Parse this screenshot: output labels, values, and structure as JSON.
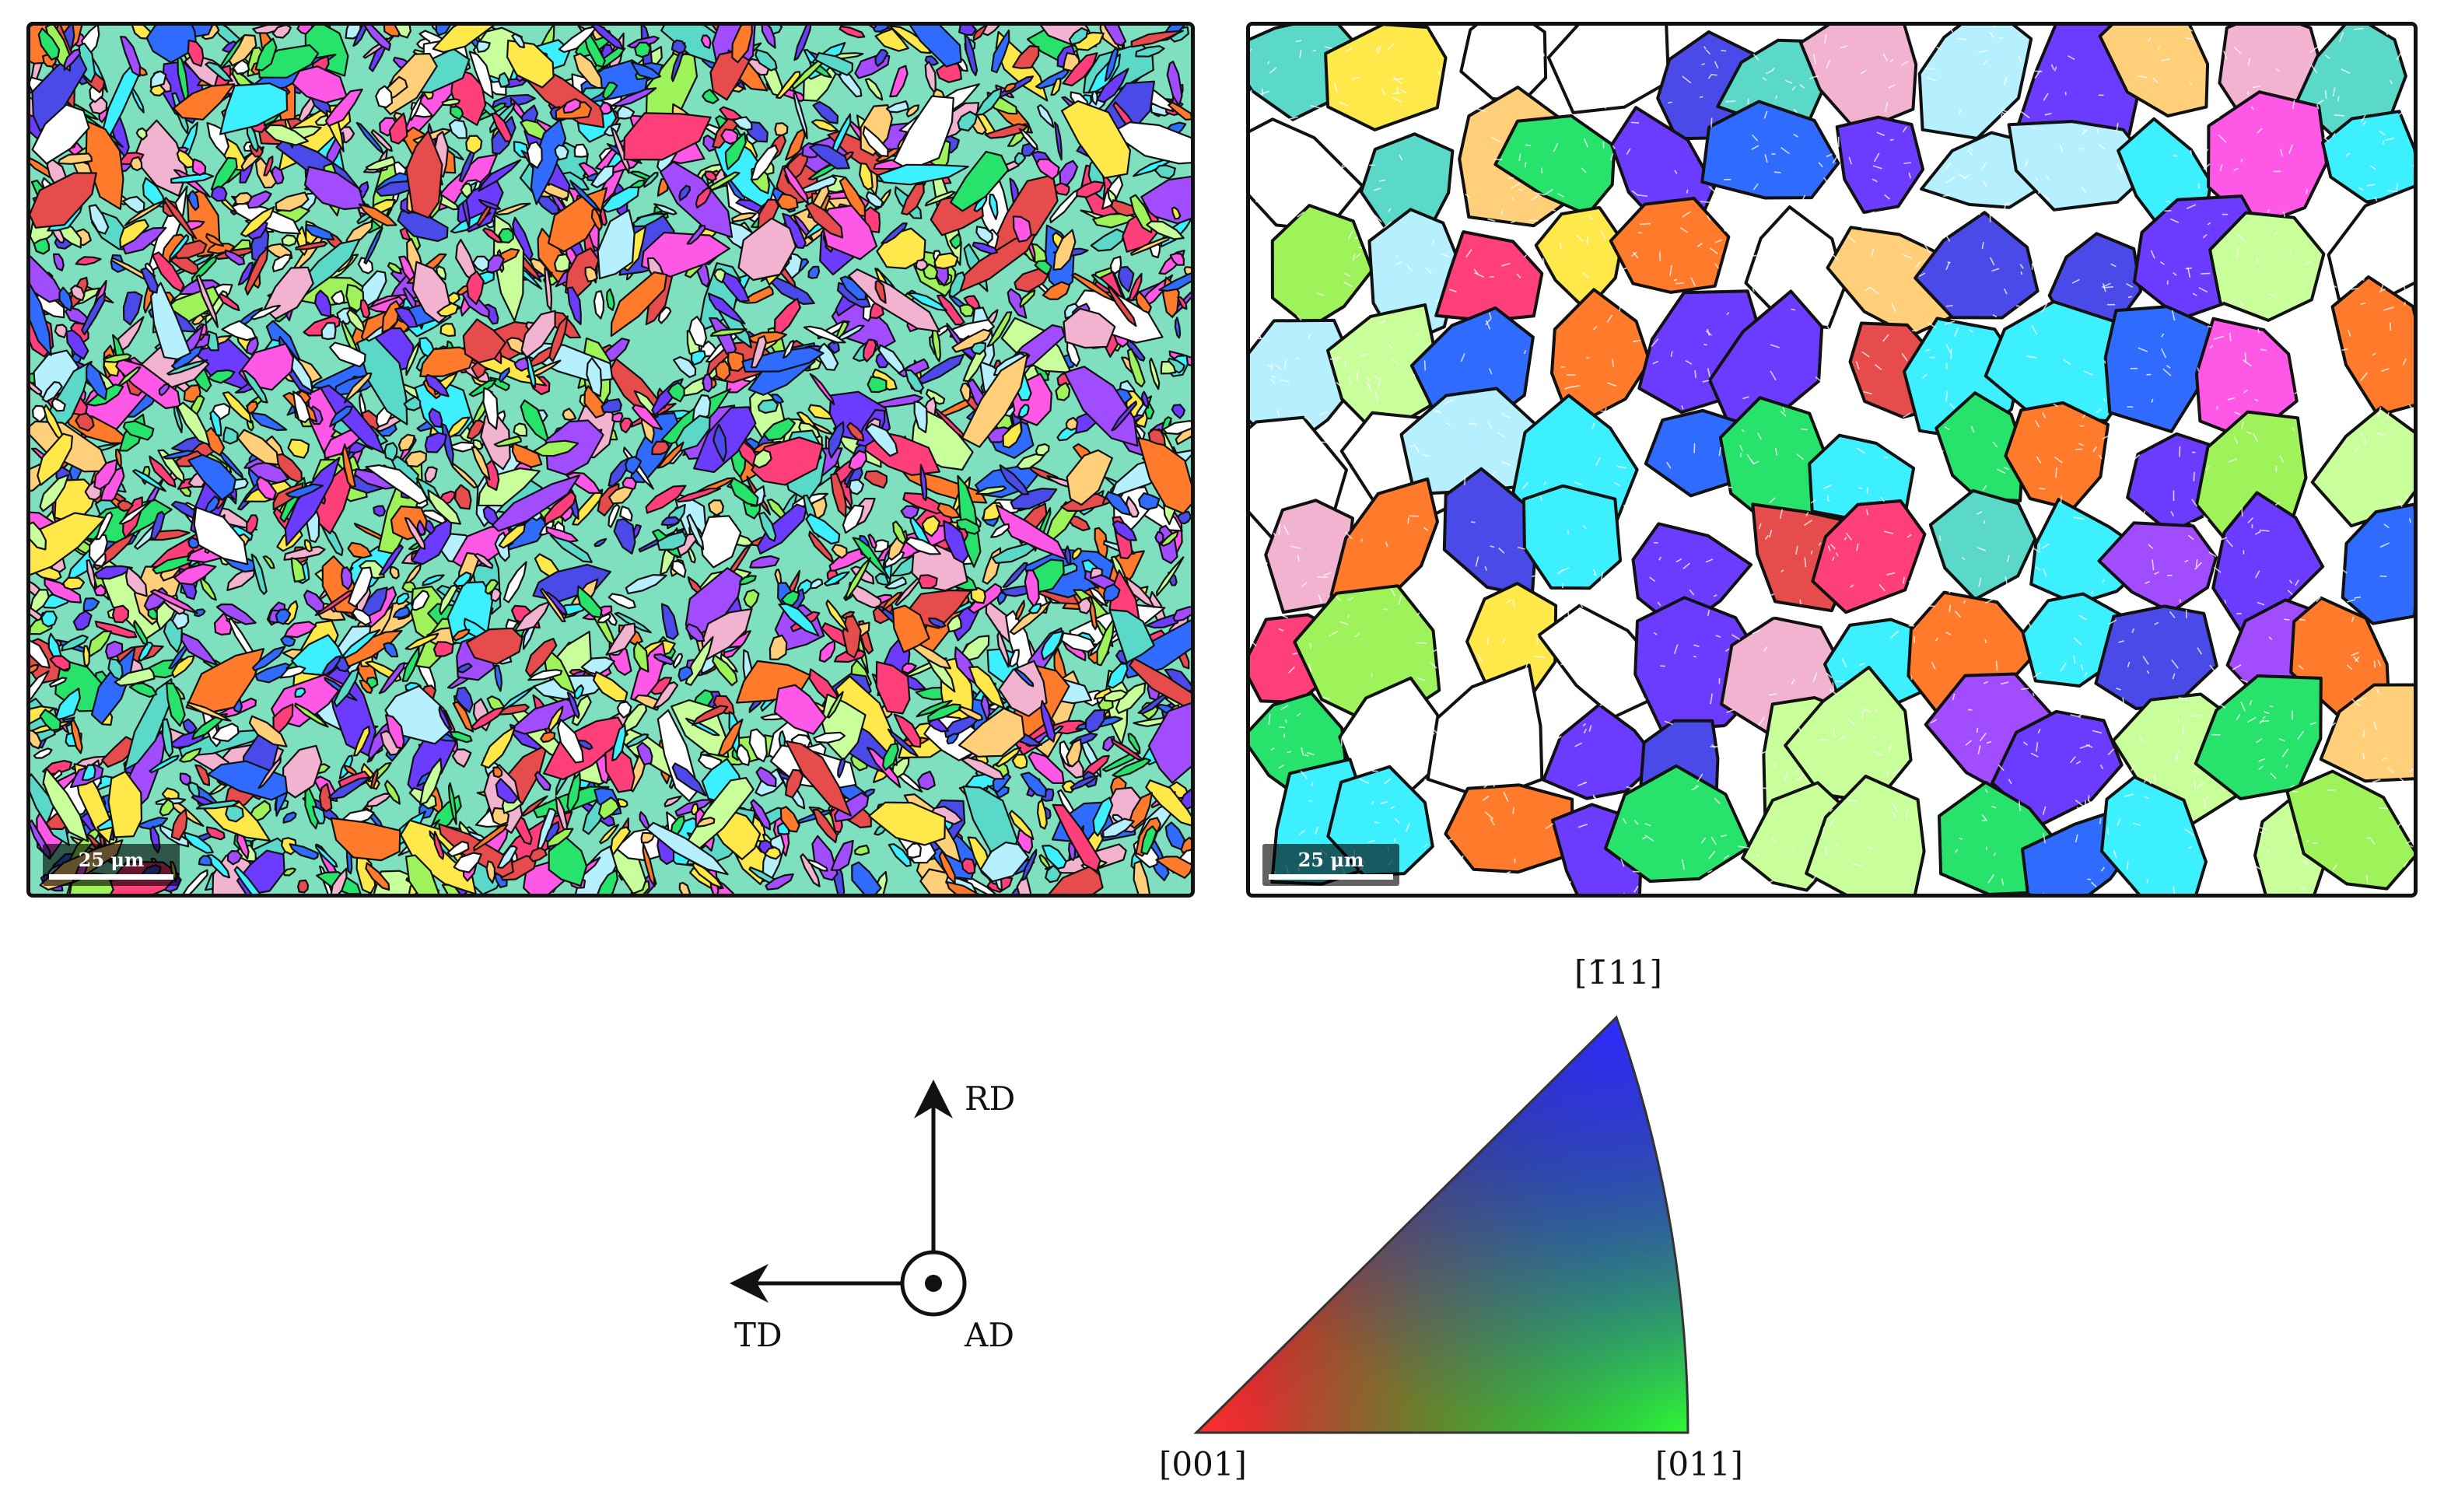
{
  "maps": {
    "left": {
      "scalebar_label": "25 μm"
    },
    "right": {
      "scalebar_label": "25 μm"
    }
  },
  "axes": {
    "rd_label": "RD",
    "td_label": "TD",
    "ad_label": "AD"
  },
  "ipf_key": {
    "top_label": "[1̄11]",
    "left_label": "[001]",
    "right_label": "[011]",
    "colors": {
      "001": "#ff0000",
      "011": "#00ff00",
      "111": "#0000ff"
    }
  },
  "palette": [
    "#2f6bff",
    "#27e36b",
    "#ff3f7a",
    "#3cf0ff",
    "#a14cff",
    "#ffe94a",
    "#ff7a2a",
    "#9ef25a",
    "#ffffff",
    "#ff57e6",
    "#6b3cff",
    "#5ad8c8",
    "#f2b3d0",
    "#b6f0ff",
    "#e64c4c",
    "#4a4ae8",
    "#c8ff9a",
    "#ffcf7a"
  ]
}
